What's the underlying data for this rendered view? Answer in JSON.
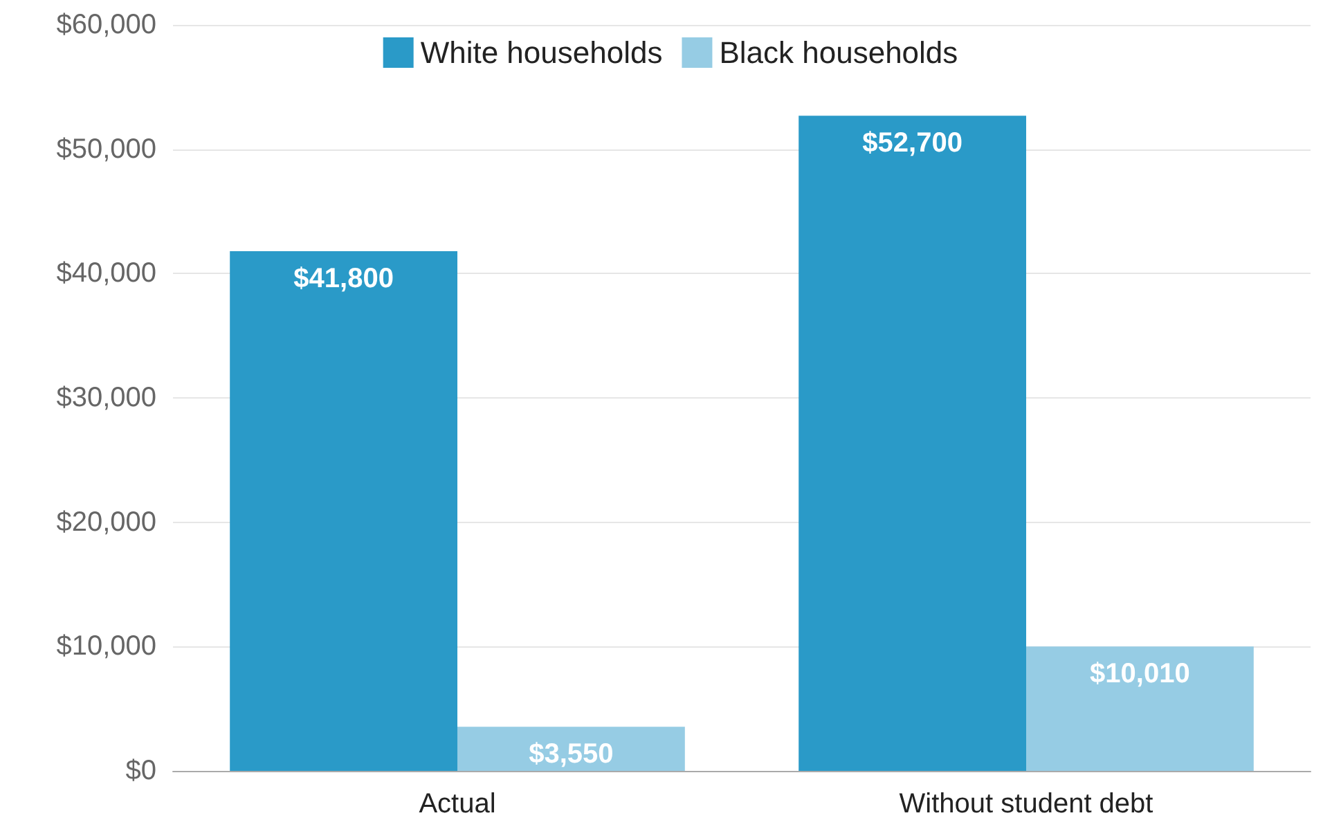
{
  "chart_data": {
    "type": "bar",
    "categories": [
      "Actual",
      "Without student debt"
    ],
    "series": [
      {
        "name": "White households",
        "color": "#2a9ac8",
        "values": [
          41800,
          52700
        ],
        "value_labels": [
          "$41,800",
          "$52,700"
        ]
      },
      {
        "name": "Black households",
        "color": "#96cce4",
        "values": [
          3550,
          10010
        ],
        "value_labels": [
          "$3,550",
          "$10,010"
        ]
      }
    ],
    "ylim": [
      0,
      60000
    ],
    "yticks": [
      {
        "value": 0,
        "label": "$0"
      },
      {
        "value": 10000,
        "label": "$10,000"
      },
      {
        "value": 20000,
        "label": "$20,000"
      },
      {
        "value": 30000,
        "label": "$30,000"
      },
      {
        "value": 40000,
        "label": "$40,000"
      },
      {
        "value": 50000,
        "label": "$50,000"
      },
      {
        "value": 60000,
        "label": "$60,000"
      }
    ],
    "grid": "y",
    "legend": "top"
  }
}
